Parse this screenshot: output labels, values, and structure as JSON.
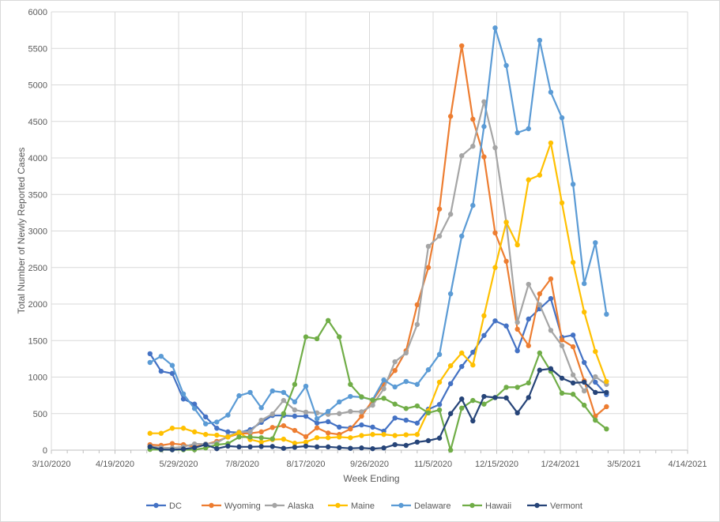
{
  "chart_data": {
    "type": "line",
    "title": "",
    "xlabel": "Week Ending",
    "ylabel": "Total Number of Newly Reported Cases",
    "xlim": [
      "3/10/2020",
      "4/14/2021"
    ],
    "ylim": [
      0,
      6000
    ],
    "x_ticks": [
      "3/10/2020",
      "4/19/2020",
      "5/29/2020",
      "7/8/2020",
      "8/17/2020",
      "9/26/2020",
      "11/5/2020",
      "12/15/2020",
      "1/24/2021",
      "3/5/2021",
      "4/14/2021"
    ],
    "y_ticks": [
      0,
      500,
      1000,
      1500,
      2000,
      2500,
      3000,
      3500,
      4000,
      4500,
      5000,
      5500,
      6000
    ],
    "grid": true,
    "legend_position": "bottom",
    "x": [
      "5/11/2020",
      "5/18/2020",
      "5/25/2020",
      "6/1/2020",
      "6/8/2020",
      "6/15/2020",
      "6/22/2020",
      "6/29/2020",
      "7/6/2020",
      "7/13/2020",
      "7/20/2020",
      "7/27/2020",
      "8/3/2020",
      "8/10/2020",
      "8/17/2020",
      "8/24/2020",
      "8/31/2020",
      "9/7/2020",
      "9/14/2020",
      "9/21/2020",
      "9/28/2020",
      "10/5/2020",
      "10/12/2020",
      "10/19/2020",
      "10/26/2020",
      "11/2/2020",
      "11/9/2020",
      "11/16/2020",
      "11/23/2020",
      "11/30/2020",
      "12/7/2020",
      "12/14/2020",
      "12/21/2020",
      "12/28/2020",
      "1/4/2021",
      "1/11/2021",
      "1/18/2021",
      "1/25/2021",
      "2/1/2021",
      "2/8/2021",
      "2/15/2021",
      "2/22/2021"
    ],
    "series": [
      {
        "name": "DC",
        "color": "#4472C4",
        "values": [
          1320,
          1080,
          1050,
          700,
          630,
          455,
          300,
          250,
          240,
          280,
          380,
          475,
          475,
          465,
          465,
          370,
          390,
          315,
          305,
          345,
          315,
          260,
          440,
          410,
          370,
          560,
          625,
          910,
          1145,
          1340,
          1570,
          1770,
          1700,
          1360,
          1795,
          1935,
          2075,
          1545,
          1575,
          1200,
          930,
          760
        ]
      },
      {
        "name": "Wyoming",
        "color": "#ED7D31",
        "values": [
          75,
          65,
          90,
          75,
          45,
          80,
          120,
          180,
          225,
          230,
          250,
          310,
          335,
          270,
          185,
          305,
          235,
          215,
          290,
          465,
          680,
          900,
          1090,
          1360,
          1990,
          2500,
          3300,
          4570,
          5535,
          4530,
          4015,
          2975,
          2585,
          1655,
          1430,
          2140,
          2345,
          1510,
          1415,
          950,
          465,
          595
        ]
      },
      {
        "name": "Alaska",
        "color": "#A5A5A5",
        "values": [
          50,
          35,
          30,
          45,
          85,
          85,
          100,
          190,
          250,
          250,
          410,
          495,
          680,
          550,
          520,
          510,
          490,
          500,
          530,
          525,
          615,
          840,
          1210,
          1330,
          1720,
          2790,
          2930,
          3230,
          4030,
          4160,
          4770,
          4140,
          3120,
          1750,
          2270,
          1990,
          1640,
          1430,
          1030,
          810,
          1005,
          900
        ]
      },
      {
        "name": "Maine",
        "color": "#FFC000",
        "values": [
          230,
          230,
          300,
          300,
          250,
          215,
          205,
          180,
          240,
          145,
          110,
          145,
          150,
          95,
          110,
          170,
          170,
          180,
          170,
          200,
          215,
          215,
          200,
          210,
          215,
          540,
          930,
          1155,
          1330,
          1165,
          1840,
          2500,
          3120,
          2810,
          3700,
          3765,
          4205,
          3385,
          2570,
          1890,
          1350,
          940
        ]
      },
      {
        "name": "Delaware",
        "color": "#5B9BD5",
        "values": [
          1200,
          1285,
          1160,
          770,
          570,
          360,
          385,
          480,
          745,
          790,
          580,
          810,
          790,
          660,
          875,
          430,
          530,
          660,
          735,
          725,
          690,
          960,
          865,
          940,
          900,
          1100,
          1310,
          2140,
          2930,
          3350,
          4430,
          5780,
          5265,
          4345,
          4400,
          5610,
          4900,
          4550,
          3640,
          2280,
          2840,
          1860
        ]
      },
      {
        "name": "Hawaii",
        "color": "#70AD47",
        "values": [
          10,
          5,
          5,
          5,
          5,
          30,
          75,
          90,
          180,
          180,
          170,
          155,
          500,
          900,
          1550,
          1525,
          1775,
          1550,
          900,
          730,
          685,
          710,
          630,
          570,
          605,
          510,
          550,
          0,
          575,
          680,
          630,
          720,
          860,
          860,
          920,
          1330,
          1080,
          780,
          765,
          615,
          410,
          290
        ]
      },
      {
        "name": "Vermont",
        "color": "#264478",
        "values": [
          45,
          10,
          5,
          15,
          35,
          75,
          20,
          55,
          45,
          45,
          50,
          50,
          25,
          40,
          55,
          45,
          45,
          35,
          25,
          30,
          20,
          30,
          75,
          65,
          110,
          130,
          165,
          500,
          700,
          400,
          735,
          720,
          715,
          510,
          720,
          1095,
          1115,
          985,
          920,
          930,
          790,
          790
        ]
      }
    ]
  }
}
